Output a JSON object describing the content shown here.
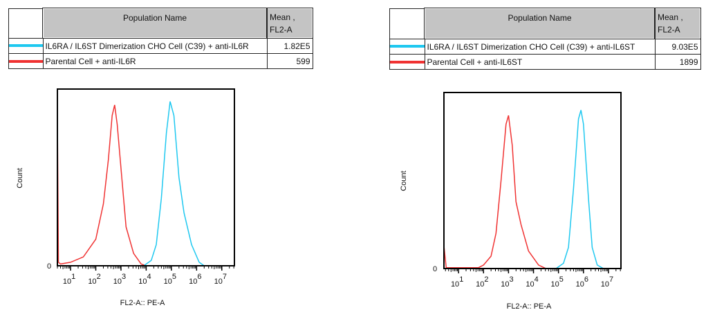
{
  "panels": [
    {
      "table": {
        "header_name": "Population Name",
        "header_mean": [
          "Mean ,",
          "FL2-A"
        ],
        "rows": [
          {
            "name": "IL6RA / IL6ST Dimerization CHO Cell (C39) + anti-IL6R",
            "mean": "1.82E5",
            "color": "#1ec8f0"
          },
          {
            "name": "Parental Cell + anti-IL6R",
            "mean": "599",
            "color": "#f03232"
          }
        ]
      }
    },
    {
      "table": {
        "header_name": "Population Name",
        "header_mean": [
          "Mean ,",
          "FL2-A"
        ],
        "rows": [
          {
            "name": "IL6RA / IL6ST Dimerization CHO Cell (C39) + anti-IL6ST",
            "mean": "9.03E5",
            "color": "#1ec8f0"
          },
          {
            "name": "Parental Cell + anti-IL6ST",
            "mean": "1899",
            "color": "#f03232"
          }
        ]
      }
    }
  ],
  "chart_data": [
    {
      "type": "line",
      "xlabel": "FL2-A:: PE-A",
      "ylabel": "Count",
      "x_scale": "log",
      "xlim": [
        3,
        31622777
      ],
      "ylim": [
        0,
        1
      ],
      "y_tick_labels": [
        "0"
      ],
      "x_tick_labels": [
        {
          "base": "10",
          "exp": "1"
        },
        {
          "base": "10",
          "exp": "2"
        },
        {
          "base": "10",
          "exp": "3"
        },
        {
          "base": "10",
          "exp": "4"
        },
        {
          "base": "10",
          "exp": "5"
        },
        {
          "base": "10",
          "exp": "6"
        },
        {
          "base": "10",
          "exp": "7"
        }
      ],
      "grid": false,
      "series": [
        {
          "name": "Parental Cell + anti-IL6R",
          "color": "#f03232",
          "points": [
            [
              3,
              0
            ],
            [
              3,
              0.85
            ],
            [
              3.3,
              0.02
            ],
            [
              4,
              0.01
            ],
            [
              10,
              0.02
            ],
            [
              32,
              0.05
            ],
            [
              100,
              0.15
            ],
            [
              200,
              0.35
            ],
            [
              316,
              0.6
            ],
            [
              447,
              0.85
            ],
            [
              562,
              0.91
            ],
            [
              708,
              0.8
            ],
            [
              1000,
              0.55
            ],
            [
              1585,
              0.22
            ],
            [
              3162,
              0.07
            ],
            [
              6310,
              0.01
            ],
            [
              10000,
              0
            ],
            [
              31622777,
              0
            ]
          ]
        },
        {
          "name": "IL6RA / IL6ST Dimerization CHO Cell (C39) + anti-IL6R",
          "color": "#1ec8f0",
          "points": [
            [
              3,
              0
            ],
            [
              7943,
              0
            ],
            [
              15849,
              0.03
            ],
            [
              25119,
              0.12
            ],
            [
              39811,
              0.38
            ],
            [
              63096,
              0.75
            ],
            [
              89125,
              0.93
            ],
            [
              125893,
              0.85
            ],
            [
              199526,
              0.5
            ],
            [
              316228,
              0.3
            ],
            [
              630957,
              0.12
            ],
            [
              1258925,
              0.02
            ],
            [
              1995262,
              0
            ],
            [
              31622777,
              0
            ]
          ]
        }
      ]
    },
    {
      "type": "line",
      "xlabel": "FL2-A:: PE-A",
      "ylabel": "Count",
      "x_scale": "log",
      "xlim": [
        2.6,
        31622777
      ],
      "ylim": [
        0,
        1
      ],
      "y_tick_labels": [
        "0"
      ],
      "x_tick_labels": [
        {
          "base": "10",
          "exp": "1"
        },
        {
          "base": "10",
          "exp": "2"
        },
        {
          "base": "10",
          "exp": "3"
        },
        {
          "base": "10",
          "exp": "4"
        },
        {
          "base": "10",
          "exp": "5"
        },
        {
          "base": "10",
          "exp": "6"
        },
        {
          "base": "10",
          "exp": "7"
        }
      ],
      "grid": false,
      "series": [
        {
          "name": "Parental Cell + anti-IL6ST",
          "color": "#f03232",
          "points": [
            [
              2.6,
              0
            ],
            [
              2.6,
              0.13
            ],
            [
              3.2,
              0.005
            ],
            [
              63,
              0.005
            ],
            [
              100,
              0.02
            ],
            [
              200,
              0.07
            ],
            [
              316,
              0.2
            ],
            [
              501,
              0.5
            ],
            [
              794,
              0.82
            ],
            [
              1000,
              0.87
            ],
            [
              1413,
              0.7
            ],
            [
              1995,
              0.38
            ],
            [
              3162,
              0.25
            ],
            [
              6310,
              0.1
            ],
            [
              15849,
              0.02
            ],
            [
              31623,
              0
            ],
            [
              6309573,
              0
            ],
            [
              10000000,
              0
            ]
          ]
        },
        {
          "name": "IL6RA / IL6ST Dimerization CHO Cell (C39) + anti-IL6ST",
          "color": "#1ec8f0",
          "points": [
            [
              2.6,
              0
            ],
            [
              79433,
              0
            ],
            [
              158489,
              0.03
            ],
            [
              251189,
              0.12
            ],
            [
              398107,
              0.45
            ],
            [
              630957,
              0.85
            ],
            [
              794328,
              0.9
            ],
            [
              1000000,
              0.82
            ],
            [
              1584893,
              0.4
            ],
            [
              2238721,
              0.12
            ],
            [
              3548134,
              0.02
            ],
            [
              6309573,
              0
            ],
            [
              31622777,
              0
            ]
          ]
        }
      ]
    }
  ]
}
